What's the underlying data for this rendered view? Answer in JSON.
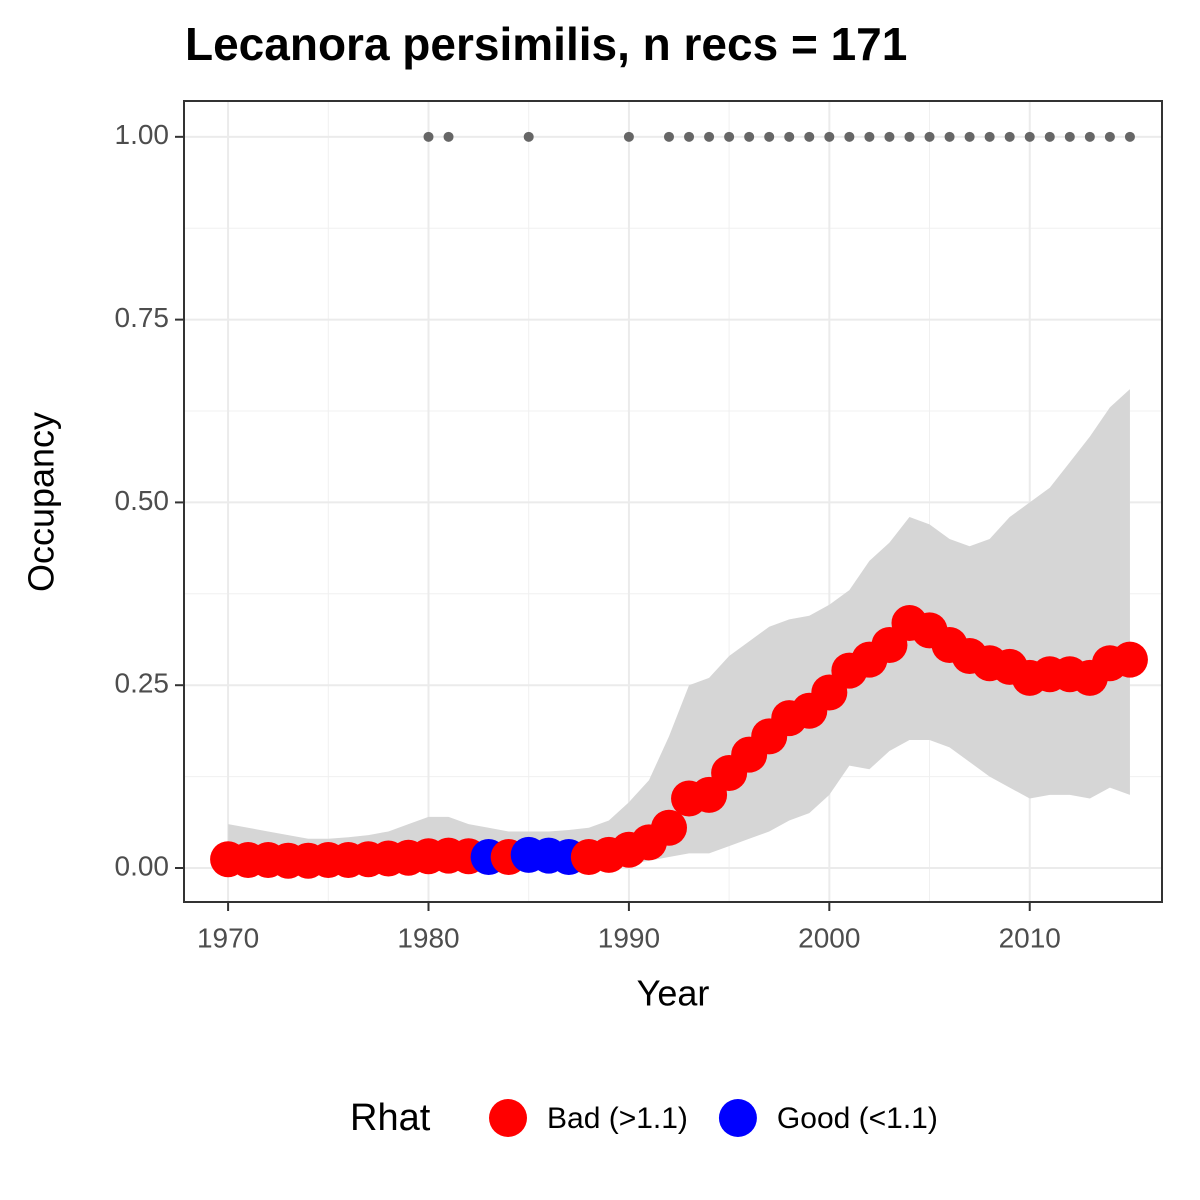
{
  "chart_data": {
    "type": "scatter",
    "title": "Lecanora persimilis, n recs = 171",
    "x_label": "Year",
    "y_label": "Occupancy",
    "x": [
      1970,
      1971,
      1972,
      1973,
      1974,
      1975,
      1976,
      1977,
      1978,
      1979,
      1980,
      1981,
      1982,
      1983,
      1984,
      1985,
      1986,
      1987,
      1988,
      1989,
      1990,
      1991,
      1992,
      1993,
      1994,
      1995,
      1996,
      1997,
      1998,
      1999,
      2000,
      2001,
      2002,
      2003,
      2004,
      2005,
      2006,
      2007,
      2008,
      2009,
      2010,
      2011,
      2012,
      2013,
      2014,
      2015
    ],
    "values": [
      0.012,
      0.011,
      0.011,
      0.01,
      0.01,
      0.011,
      0.011,
      0.012,
      0.013,
      0.014,
      0.016,
      0.017,
      0.016,
      0.015,
      0.015,
      0.018,
      0.017,
      0.015,
      0.015,
      0.018,
      0.025,
      0.035,
      0.055,
      0.095,
      0.1,
      0.13,
      0.155,
      0.18,
      0.205,
      0.215,
      0.24,
      0.27,
      0.285,
      0.305,
      0.335,
      0.325,
      0.305,
      0.29,
      0.28,
      0.275,
      0.26,
      0.265,
      0.265,
      0.26,
      0.28,
      0.285
    ],
    "point_colors": [
      "red",
      "red",
      "red",
      "red",
      "red",
      "red",
      "red",
      "red",
      "red",
      "red",
      "red",
      "red",
      "red",
      "blue",
      "red",
      "blue",
      "blue",
      "blue",
      "red",
      "red",
      "red",
      "red",
      "red",
      "red",
      "red",
      "red",
      "red",
      "red",
      "red",
      "red",
      "red",
      "red",
      "red",
      "red",
      "red",
      "red",
      "red",
      "red",
      "red",
      "red",
      "red",
      "red",
      "red",
      "red",
      "red",
      "red"
    ],
    "upper": [
      0.06,
      0.055,
      0.05,
      0.045,
      0.04,
      0.04,
      0.042,
      0.045,
      0.05,
      0.06,
      0.07,
      0.07,
      0.06,
      0.055,
      0.05,
      0.05,
      0.05,
      0.052,
      0.055,
      0.065,
      0.09,
      0.12,
      0.18,
      0.25,
      0.26,
      0.29,
      0.31,
      0.33,
      0.34,
      0.345,
      0.36,
      0.38,
      0.42,
      0.445,
      0.48,
      0.47,
      0.45,
      0.44,
      0.45,
      0.48,
      0.5,
      0.52,
      0.555,
      0.59,
      0.63,
      0.655
    ],
    "lower": [
      0.001,
      0.001,
      0.001,
      0.001,
      0.001,
      0.001,
      0.001,
      0.001,
      0.001,
      0.001,
      0.001,
      0.001,
      0.001,
      0.001,
      0.001,
      0.001,
      0.001,
      0.001,
      0.002,
      0.003,
      0.005,
      0.01,
      0.015,
      0.02,
      0.02,
      0.03,
      0.04,
      0.05,
      0.065,
      0.075,
      0.1,
      0.14,
      0.135,
      0.16,
      0.175,
      0.175,
      0.165,
      0.145,
      0.125,
      0.11,
      0.095,
      0.1,
      0.1,
      0.095,
      0.11,
      0.1
    ],
    "ribbon_color": "#d6d6d6",
    "records": {
      "color": "#666666",
      "x": [
        1980,
        1981,
        1985,
        1990,
        1992,
        1993,
        1994,
        1995,
        1996,
        1997,
        1998,
        1999,
        2000,
        2001,
        2002,
        2003,
        2004,
        2005,
        2006,
        2007,
        2008,
        2009,
        2010,
        2011,
        2012,
        2013,
        2014,
        2015
      ],
      "values": [
        1,
        1,
        1,
        1,
        1,
        1,
        1,
        1,
        1,
        1,
        1,
        1,
        1,
        1,
        1,
        1,
        1,
        1,
        1,
        1,
        1,
        1,
        1,
        1,
        1,
        1,
        1,
        1
      ]
    },
    "xlim": [
      1967.8,
      2016.6
    ],
    "xticks": [
      1970,
      1980,
      1990,
      2000,
      2010
    ],
    "ylim": [
      -0.0465,
      1.049
    ],
    "yticks": [
      {
        "value": 0,
        "label": "0.00"
      },
      {
        "value": 0.25,
        "label": "0.25"
      },
      {
        "value": 0.5,
        "label": "0.50"
      },
      {
        "value": 0.75,
        "label": "0.75"
      },
      {
        "value": 1,
        "label": "1.00"
      }
    ],
    "grid": true,
    "legend": {
      "title": "Rhat",
      "position": "bottom",
      "entries": [
        {
          "name": "Bad (>1.1)",
          "color": "red"
        },
        {
          "name": "Good (<1.1)",
          "color": "blue"
        }
      ]
    }
  }
}
